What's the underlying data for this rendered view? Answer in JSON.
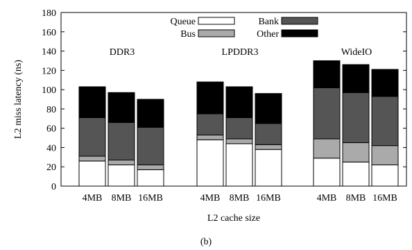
{
  "chart_data": {
    "type": "bar",
    "stacked": true,
    "ylabel": "L2 miss latency (ns)",
    "xlabel": "L2 cache size",
    "caption": "(b)",
    "ylim": [
      0,
      180
    ],
    "yticks": [
      0,
      20,
      40,
      60,
      80,
      100,
      120,
      140,
      160,
      180
    ],
    "groups": [
      "DDR3",
      "LPDDR3",
      "WideIO"
    ],
    "categories": [
      "4MB",
      "8MB",
      "16MB"
    ],
    "series": [
      {
        "name": "Queue",
        "color": "#ffffff",
        "values": [
          [
            26,
            22,
            17
          ],
          [
            48,
            44,
            38
          ],
          [
            29,
            25,
            22
          ]
        ]
      },
      {
        "name": "Bus",
        "color": "#aaaaaa",
        "values": [
          [
            5,
            5,
            5
          ],
          [
            5,
            5,
            5
          ],
          [
            20,
            20,
            20
          ]
        ]
      },
      {
        "name": "Bank",
        "color": "#555555",
        "values": [
          [
            40,
            39,
            39
          ],
          [
            22,
            22,
            22
          ],
          [
            53,
            52,
            51
          ]
        ]
      },
      {
        "name": "Other",
        "color": "#000000",
        "values": [
          [
            32,
            31,
            29
          ],
          [
            33,
            32,
            31
          ],
          [
            28,
            29,
            28
          ]
        ]
      }
    ],
    "legend_position": "top"
  }
}
